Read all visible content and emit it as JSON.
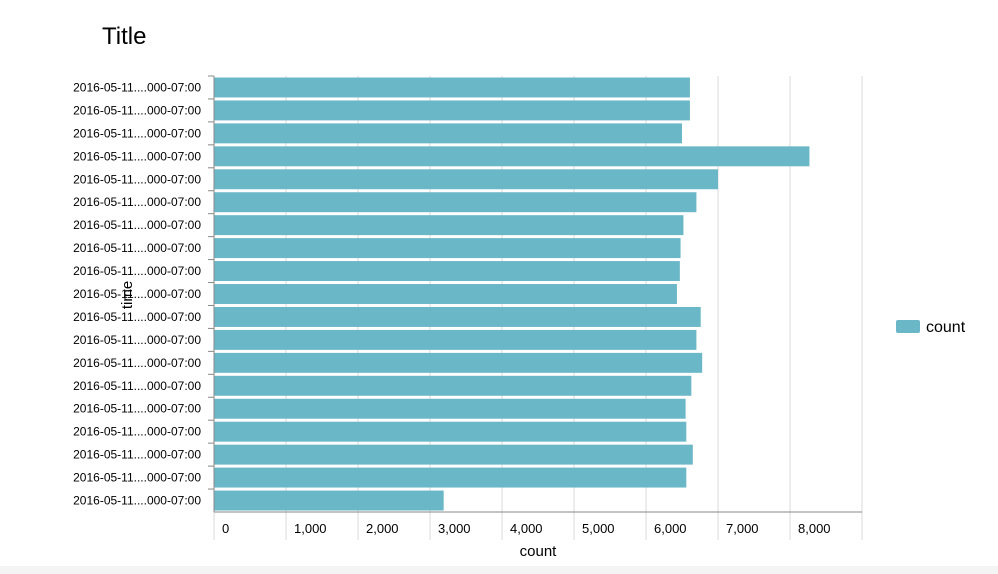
{
  "chart_data": {
    "type": "bar",
    "orientation": "horizontal",
    "title": "Title",
    "xlabel": "count",
    "ylabel": "time",
    "xlim": [
      0,
      9000
    ],
    "xticks": [
      "0",
      "1,000",
      "2,000",
      "3,000",
      "4,000",
      "5,000",
      "6,000",
      "7,000",
      "8,000"
    ],
    "xtick_values": [
      0,
      1000,
      2000,
      3000,
      4000,
      5000,
      6000,
      7000,
      8000
    ],
    "grid": true,
    "legend_position": "right",
    "categories": [
      "2016-05-11....000-07:00",
      "2016-05-11....000-07:00",
      "2016-05-11....000-07:00",
      "2016-05-11....000-07:00",
      "2016-05-11....000-07:00",
      "2016-05-11....000-07:00",
      "2016-05-11....000-07:00",
      "2016-05-11....000-07:00",
      "2016-05-11....000-07:00",
      "2016-05-11....000-07:00",
      "2016-05-11....000-07:00",
      "2016-05-11....000-07:00",
      "2016-05-11....000-07:00",
      "2016-05-11....000-07:00",
      "2016-05-11....000-07:00",
      "2016-05-11....000-07:00",
      "2016-05-11....000-07:00",
      "2016-05-11....000-07:00",
      "2016-05-11....000-07:00"
    ],
    "series": [
      {
        "name": "count",
        "color": "#6ab7c7",
        "values": [
          6610,
          6610,
          6500,
          8270,
          7000,
          6700,
          6520,
          6480,
          6470,
          6430,
          6760,
          6700,
          6780,
          6630,
          6550,
          6560,
          6650,
          6560,
          3190
        ]
      }
    ]
  }
}
